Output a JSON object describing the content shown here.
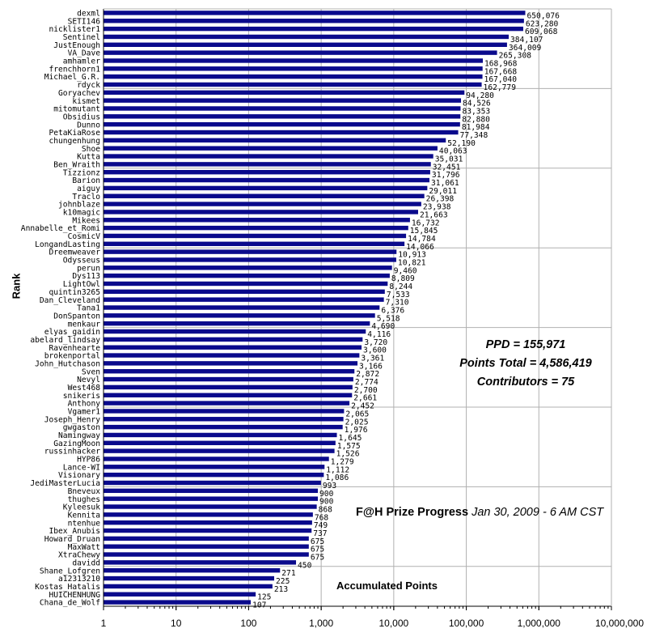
{
  "chart_data": {
    "type": "bar",
    "orientation": "horizontal",
    "x_scale": "log",
    "xlim": [
      1,
      10000000
    ],
    "x_ticks": [
      "1",
      "10",
      "100",
      "1,000",
      "10,000",
      "100,000",
      "1,000,000",
      "10,000,000"
    ],
    "ylabel": "Rank",
    "xlabel": "",
    "grid": true,
    "bar_color": "#0a0a8c",
    "categories": [
      "dexml",
      "SETI146",
      "nicklister1",
      "Sentinel",
      "JustEnough",
      "VA_Dave",
      "amhamler",
      "frenchhorn1",
      "Michael_G.R.",
      "rdyck",
      "Goryachev",
      "kismet",
      "mitomutant",
      "Obsidius",
      "Dunno",
      "PetaKiaRose",
      "chungenhung",
      "Shoe",
      "Kutta",
      "Ben_Wraith",
      "Tizzionz",
      "Barion",
      "aiguy",
      "Traclo",
      "johnblaze",
      "k10magic",
      "Mikees",
      "Annabelle_et_Romi",
      "CosmicV",
      "LongandLasting",
      "Dreemweaver",
      "Odysseus",
      "perun",
      "Dys113",
      "LightOwl",
      "quintin3265",
      "Dan_Cleveland",
      "Tana1",
      "DonSpanton",
      "menkaur",
      "elyas_gaidin",
      "abelard_lindsay",
      "Ravenhearte",
      "brokenportal",
      "John_Hutchason",
      "Sven",
      "Nevyl",
      "West468",
      "snikeris",
      "Anthony",
      "Vgamer1",
      "Joseph_Henry",
      "gwgaston",
      "Namingway",
      "GazingMoon",
      "russinhacker",
      "HYP86",
      "Lance-WI",
      "Visionary",
      "JediMasterLucia",
      "Bneveux",
      "thughes",
      "Kyleesuk",
      "Kennita",
      "ntenhue",
      "Ibex_Anubis",
      "Howard_Druan",
      "MaxWatt",
      "XtraChewy",
      "davidd",
      "Shane_Lofgren",
      "a12313210",
      "Kostas_Hatalis",
      "HUICHENHUNG",
      "Chana_de_Wolf"
    ],
    "values": [
      650076,
      623280,
      609068,
      384107,
      364009,
      265308,
      168968,
      167668,
      167040,
      162779,
      94280,
      84526,
      83353,
      82880,
      81984,
      77348,
      52190,
      40063,
      35031,
      32451,
      31796,
      31061,
      29011,
      26398,
      23938,
      21663,
      16732,
      15845,
      14784,
      14066,
      10913,
      10821,
      9460,
      8809,
      8244,
      7533,
      7310,
      6376,
      5518,
      4690,
      4116,
      3720,
      3600,
      3361,
      3166,
      2872,
      2774,
      2700,
      2661,
      2452,
      2065,
      2025,
      1976,
      1645,
      1575,
      1526,
      1279,
      1112,
      1086,
      993,
      900,
      900,
      868,
      768,
      749,
      737,
      675,
      675,
      675,
      450,
      271,
      225,
      213,
      125,
      107
    ],
    "value_labels": [
      "650,076",
      "623,280",
      "609,068",
      "384,107",
      "364,009",
      "265,308",
      "168,968",
      "167,668",
      "167,040",
      "162,779",
      "94,280",
      "84,526",
      "83,353",
      "82,880",
      "81,984",
      "77,348",
      "52,190",
      "40,063",
      "35,031",
      "32,451",
      "31,796",
      "31,061",
      "29,011",
      "26,398",
      "23,938",
      "21,663",
      "16,732",
      "15,845",
      "14,784",
      "14,066",
      "10,913",
      "10,821",
      "9,460",
      "8,809",
      "8,244",
      "7,533",
      "7,310",
      "6,376",
      "5,518",
      "4,690",
      "4,116",
      "3,720",
      "3,600",
      "3,361",
      "3,166",
      "2,872",
      "2,774",
      "2,700",
      "2,661",
      "2,452",
      "2,065",
      "2,025",
      "1,976",
      "1,645",
      "1,575",
      "1,526",
      "1,279",
      "1,112",
      "1,086",
      "993",
      "900",
      "900",
      "868",
      "768",
      "749",
      "737",
      "675",
      "675",
      "675",
      "450",
      "271",
      "225",
      "213",
      "125",
      "107"
    ]
  },
  "annotations": {
    "ppd": "PPD = 155,971",
    "points_total": "Points Total = 4,586,419",
    "contributors": "Contributors = 75",
    "title_main": "F@H Prize Progress",
    "title_date": "Jan 30, 2009 - 6 AM CST",
    "accumulated": "Accumulated Points"
  }
}
